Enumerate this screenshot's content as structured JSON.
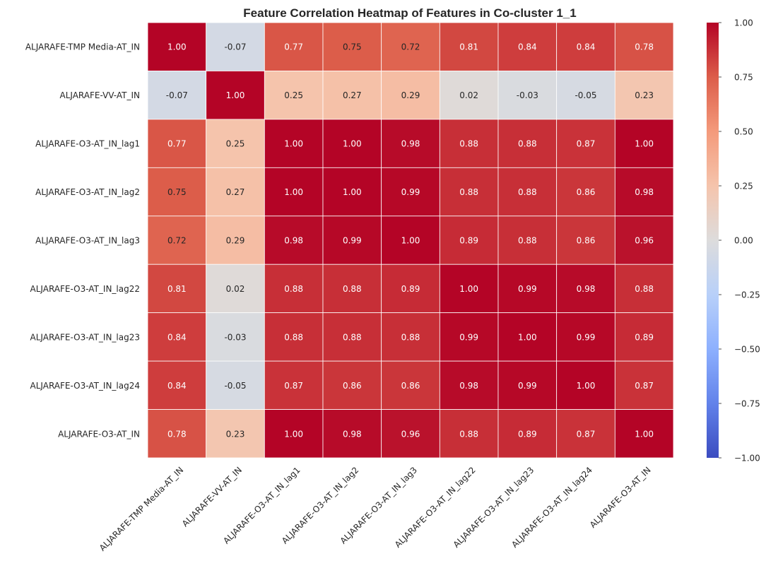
{
  "chart_data": {
    "type": "heatmap",
    "title": "Feature Correlation Heatmap of Features in Co-cluster 1_1",
    "x_labels": [
      "ALJARAFE-TMP Media-AT_IN",
      "ALJARAFE-VV-AT_IN",
      "ALJARAFE-O3-AT_IN_lag1",
      "ALJARAFE-O3-AT_IN_lag2",
      "ALJARAFE-O3-AT_IN_lag3",
      "ALJARAFE-O3-AT_IN_lag22",
      "ALJARAFE-O3-AT_IN_lag23",
      "ALJARAFE-O3-AT_IN_lag24",
      "ALJARAFE-O3-AT_IN"
    ],
    "y_labels": [
      "ALJARAFE-TMP Media-AT_IN",
      "ALJARAFE-VV-AT_IN",
      "ALJARAFE-O3-AT_IN_lag1",
      "ALJARAFE-O3-AT_IN_lag2",
      "ALJARAFE-O3-AT_IN_lag3",
      "ALJARAFE-O3-AT_IN_lag22",
      "ALJARAFE-O3-AT_IN_lag23",
      "ALJARAFE-O3-AT_IN_lag24",
      "ALJARAFE-O3-AT_IN"
    ],
    "values": [
      [
        1.0,
        -0.07,
        0.77,
        0.75,
        0.72,
        0.81,
        0.84,
        0.84,
        0.78
      ],
      [
        -0.07,
        1.0,
        0.25,
        0.27,
        0.29,
        0.02,
        -0.03,
        -0.05,
        0.23
      ],
      [
        0.77,
        0.25,
        1.0,
        1.0,
        0.98,
        0.88,
        0.88,
        0.87,
        1.0
      ],
      [
        0.75,
        0.27,
        1.0,
        1.0,
        0.99,
        0.88,
        0.88,
        0.86,
        0.98
      ],
      [
        0.72,
        0.29,
        0.98,
        0.99,
        1.0,
        0.89,
        0.88,
        0.86,
        0.96
      ],
      [
        0.81,
        0.02,
        0.88,
        0.88,
        0.89,
        1.0,
        0.99,
        0.98,
        0.88
      ],
      [
        0.84,
        -0.03,
        0.88,
        0.88,
        0.88,
        0.99,
        1.0,
        0.99,
        0.89
      ],
      [
        0.84,
        -0.05,
        0.87,
        0.86,
        0.86,
        0.98,
        0.99,
        1.0,
        0.87
      ],
      [
        0.78,
        0.23,
        1.0,
        0.98,
        0.96,
        0.88,
        0.89,
        0.87,
        1.0
      ]
    ],
    "value_format": "0.00",
    "colormap": "coolwarm",
    "vmin": -1.0,
    "vmax": 1.0,
    "colorbar_ticks": [
      1.0,
      0.75,
      0.5,
      0.25,
      0.0,
      -0.25,
      -0.5,
      -0.75,
      -1.0
    ],
    "colorbar_tick_labels": [
      "1.00",
      "0.75",
      "0.50",
      "0.25",
      "0.00",
      "−0.25",
      "−0.50",
      "−0.75",
      "−1.00"
    ],
    "colors": {
      "cmap_stops": [
        "#3b4cc0",
        "#6282ea",
        "#8db0fe",
        "#b8d0f9",
        "#dddcdc",
        "#f5c4ac",
        "#f49a7b",
        "#dc5d4a",
        "#b40426"
      ],
      "grid_line": "#ffffff",
      "text_dark": "#262626",
      "text_light": "#ffffff"
    }
  }
}
